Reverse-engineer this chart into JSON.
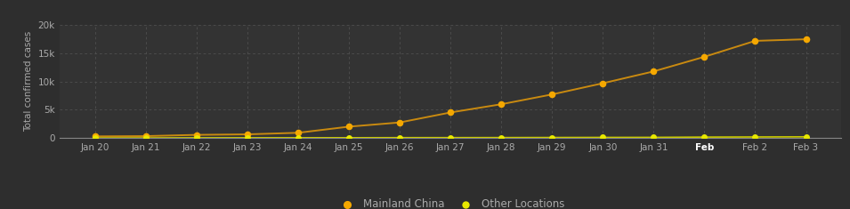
{
  "dates": [
    "Jan 20",
    "Jan 21",
    "Jan 22",
    "Jan 23",
    "Jan 24",
    "Jan 25",
    "Jan 26",
    "Jan 27",
    "Jan 28",
    "Jan 29",
    "Jan 30",
    "Jan 31",
    "Feb",
    "Feb 2",
    "Feb 3"
  ],
  "mainland_china": [
    278,
    326,
    547,
    639,
    916,
    2000,
    2744,
    4515,
    5974,
    7711,
    9692,
    11791,
    14380,
    17205,
    17489
  ],
  "other_locations": [
    4,
    5,
    25,
    30,
    35,
    40,
    55,
    60,
    68,
    82,
    97,
    106,
    153,
    176,
    200
  ],
  "line_color_mainland": "#c98a10",
  "line_color_other": "#c8c800",
  "dot_color_mainland": "#f5a800",
  "dot_color_other": "#e8e800",
  "background_color": "#2e2e2e",
  "plot_bg_color": "#333333",
  "grid_color": "#555555",
  "text_color": "#aaaaaa",
  "axis_line_color": "#888888",
  "ylabel": "Total confirmed cases",
  "ylim": [
    0,
    20000
  ],
  "yticks": [
    0,
    5000,
    10000,
    15000,
    20000
  ],
  "ytick_labels": [
    "0",
    "5k",
    "10k",
    "15k",
    "20k"
  ],
  "axis_fontsize": 7.5,
  "legend_fontsize": 8.5
}
